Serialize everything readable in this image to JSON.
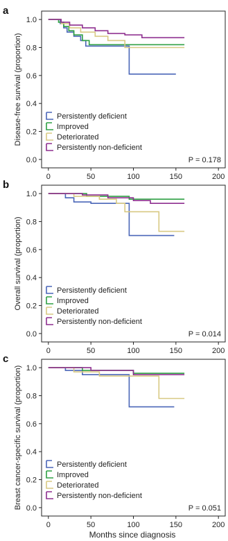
{
  "figure": {
    "xlabel": "Months since diagnosis",
    "colors": {
      "persistently_deficient": "#4a66b8",
      "improved": "#2ea043",
      "deteriorated": "#d8c983",
      "persistently_non_deficient": "#8e2f8f"
    }
  },
  "chart_data": [
    {
      "type": "line",
      "panel_label": "a",
      "ylabel": "Disease-free survival (proportion)",
      "xlabel": "",
      "xlim": [
        -8,
        208
      ],
      "ylim": [
        -0.06,
        1.06
      ],
      "xticks": [
        "0",
        "50",
        "100",
        "150",
        "200"
      ],
      "yticks": [
        "0.0",
        "0.2",
        "0.4",
        "0.6",
        "0.8",
        "1.0"
      ],
      "legend_position": "bottom-left",
      "p_value": "P = 0.178",
      "series": [
        {
          "name": "Persistently deficient",
          "color": "#4a66b8",
          "x": [
            0,
            14,
            18,
            22,
            30,
            38,
            44,
            95,
            95,
            150
          ],
          "y": [
            1.0,
            0.97,
            0.94,
            0.91,
            0.88,
            0.85,
            0.81,
            0.81,
            0.61,
            0.61
          ]
        },
        {
          "name": "Improved",
          "color": "#2ea043",
          "x": [
            0,
            12,
            18,
            24,
            30,
            40,
            48,
            160
          ],
          "y": [
            1.0,
            0.98,
            0.95,
            0.92,
            0.89,
            0.85,
            0.82,
            0.82
          ]
        },
        {
          "name": "Deteriorated",
          "color": "#d8c983",
          "x": [
            0,
            15,
            25,
            38,
            55,
            70,
            90,
            160
          ],
          "y": [
            1.0,
            0.97,
            0.94,
            0.91,
            0.88,
            0.85,
            0.8,
            0.8
          ]
        },
        {
          "name": "Persistently non-deficient",
          "color": "#8e2f8f",
          "x": [
            0,
            15,
            25,
            40,
            55,
            70,
            90,
            110,
            160
          ],
          "y": [
            1.0,
            0.98,
            0.96,
            0.94,
            0.92,
            0.9,
            0.89,
            0.87,
            0.87
          ]
        }
      ]
    },
    {
      "type": "line",
      "panel_label": "b",
      "ylabel": "Overall survival (proportion)",
      "xlabel": "",
      "xlim": [
        -8,
        208
      ],
      "ylim": [
        -0.06,
        1.06
      ],
      "xticks": [
        "0",
        "50",
        "100",
        "150",
        "200"
      ],
      "yticks": [
        "0.0",
        "0.2",
        "0.4",
        "0.6",
        "0.8",
        "1.0"
      ],
      "legend_position": "bottom-left",
      "p_value": "P = 0.014",
      "series": [
        {
          "name": "Persistently deficient",
          "color": "#4a66b8",
          "x": [
            0,
            20,
            30,
            50,
            95,
            95,
            148
          ],
          "y": [
            1.0,
            0.97,
            0.94,
            0.93,
            0.93,
            0.7,
            0.7
          ]
        },
        {
          "name": "Improved",
          "color": "#2ea043",
          "x": [
            0,
            45,
            95,
            160
          ],
          "y": [
            1.0,
            0.98,
            0.96,
            0.96
          ]
        },
        {
          "name": "Deteriorated",
          "color": "#d8c983",
          "x": [
            0,
            30,
            60,
            80,
            90,
            130,
            160
          ],
          "y": [
            1.0,
            0.98,
            0.96,
            0.93,
            0.87,
            0.73,
            0.73
          ]
        },
        {
          "name": "Persistently non-deficient",
          "color": "#8e2f8f",
          "x": [
            0,
            40,
            70,
            100,
            120,
            160
          ],
          "y": [
            1.0,
            0.99,
            0.97,
            0.95,
            0.93,
            0.93
          ]
        }
      ]
    },
    {
      "type": "line",
      "panel_label": "c",
      "ylabel": "Breast cancer-specific survival (proportion)",
      "xlabel": "Months since diagnosis",
      "xlim": [
        -8,
        208
      ],
      "ylim": [
        -0.06,
        1.06
      ],
      "xticks": [
        "0",
        "50",
        "100",
        "150",
        "200"
      ],
      "yticks": [
        "0.0",
        "0.2",
        "0.4",
        "0.6",
        "0.8",
        "1.0"
      ],
      "legend_position": "bottom-left",
      "p_value": "P = 0.051",
      "series": [
        {
          "name": "Persistently deficient",
          "color": "#4a66b8",
          "x": [
            0,
            20,
            40,
            95,
            95,
            148
          ],
          "y": [
            1.0,
            0.98,
            0.95,
            0.95,
            0.72,
            0.72
          ]
        },
        {
          "name": "Improved",
          "color": "#2ea043",
          "x": [
            0,
            40,
            100,
            160
          ],
          "y": [
            1.0,
            0.98,
            0.96,
            0.96
          ]
        },
        {
          "name": "Deteriorated",
          "color": "#d8c983",
          "x": [
            0,
            30,
            60,
            130,
            160
          ],
          "y": [
            1.0,
            0.97,
            0.94,
            0.78,
            0.78
          ]
        },
        {
          "name": "Persistently non-deficient",
          "color": "#8e2f8f",
          "x": [
            0,
            50,
            100,
            160
          ],
          "y": [
            1.0,
            0.98,
            0.95,
            0.95
          ]
        }
      ]
    }
  ]
}
